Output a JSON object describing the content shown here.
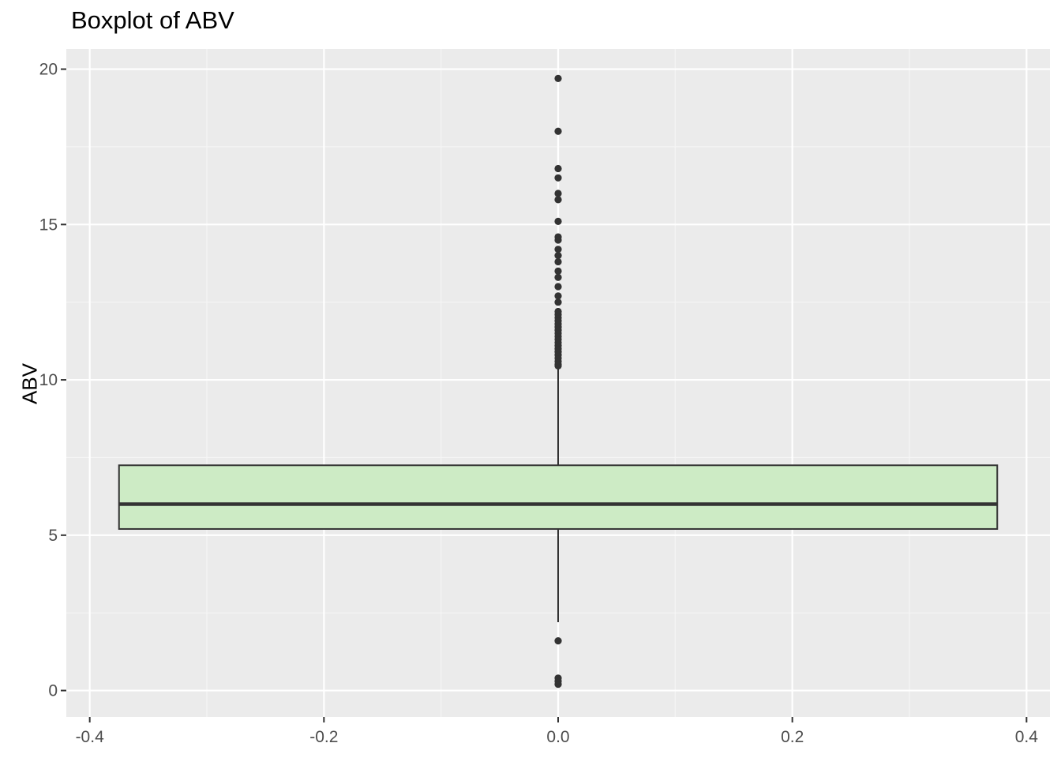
{
  "chart_data": {
    "type": "boxplot",
    "title": "Boxplot of ABV",
    "xlabel": "",
    "ylabel": "ABV",
    "xlim": [
      -0.42,
      0.42
    ],
    "ylim": [
      -0.85,
      20.65
    ],
    "x_ticks": [
      -0.4,
      -0.2,
      0.0,
      0.2,
      0.4
    ],
    "x_tick_labels": [
      "-0.4",
      "-0.2",
      "0.0",
      "0.2",
      "0.4"
    ],
    "y_ticks": [
      0,
      5,
      10,
      15,
      20
    ],
    "y_tick_labels": [
      "0",
      "5",
      "10",
      "15",
      "20"
    ],
    "grid": true,
    "box": {
      "x_center": 0.0,
      "x_min": -0.375,
      "x_max": 0.375,
      "whisker_low": 2.2,
      "q1": 5.2,
      "median": 6.0,
      "q3": 7.25,
      "whisker_high": 10.4,
      "fill": "#cdebc5",
      "outline": "#333333"
    },
    "outliers": [
      0.2,
      0.3,
      0.4,
      1.6,
      10.45,
      10.5,
      10.6,
      10.7,
      10.8,
      10.9,
      11.0,
      11.1,
      11.2,
      11.3,
      11.4,
      11.5,
      11.6,
      11.7,
      11.8,
      11.9,
      12.0,
      12.1,
      12.2,
      12.5,
      12.7,
      13.0,
      13.3,
      13.5,
      13.8,
      14.0,
      14.2,
      14.5,
      14.6,
      15.1,
      15.8,
      16.0,
      16.5,
      16.8,
      18.0,
      19.7
    ],
    "colors": {
      "panel_background": "#ebebeb",
      "grid_major": "#ffffff",
      "grid_minor": "#f5f5f5",
      "tick_text": "#4d4d4d",
      "point": "#333333"
    }
  }
}
